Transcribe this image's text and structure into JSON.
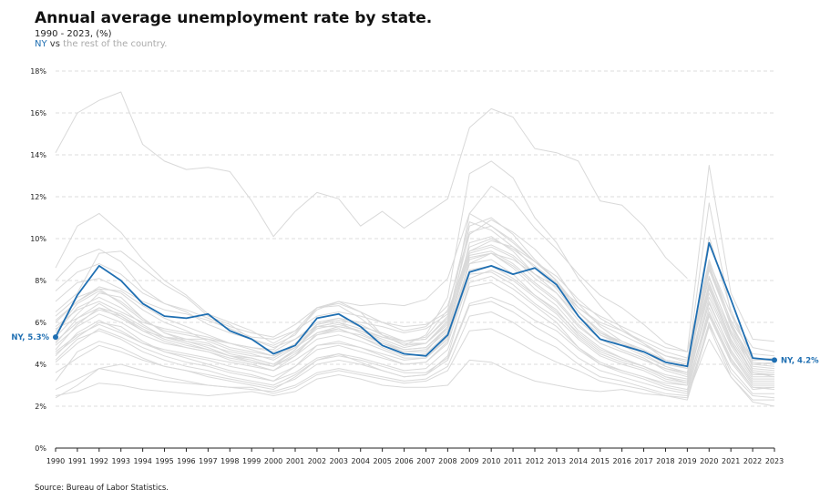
{
  "header": {
    "title": "Annual average unemployment rate by state.",
    "subtitle": "1990 - 2023, (%)",
    "legend_ny": "NY",
    "legend_vs": " vs ",
    "legend_rest": "the rest of the country."
  },
  "footer": {
    "source": "Source: Bureau of Labor Statistics."
  },
  "colors": {
    "ny": "#1f6fb2",
    "rest": "#d9d9d9",
    "grid": "#dddddd"
  },
  "chart_data": {
    "type": "line",
    "title": "Annual average unemployment rate by state.",
    "subtitle": "1990 - 2023, (%)",
    "xlabel": "",
    "ylabel": "",
    "ylim": [
      0,
      18
    ],
    "yticks": [
      0,
      2,
      4,
      6,
      8,
      10,
      12,
      14,
      16,
      18
    ],
    "ytick_labels": [
      "0%",
      "2%",
      "4%",
      "6%",
      "8%",
      "10%",
      "12%",
      "14%",
      "16%",
      "18%"
    ],
    "grid": true,
    "x": [
      1990,
      1991,
      1992,
      1993,
      1994,
      1995,
      1996,
      1997,
      1998,
      1999,
      2000,
      2001,
      2002,
      2003,
      2004,
      2005,
      2006,
      2007,
      2008,
      2009,
      2010,
      2011,
      2012,
      2013,
      2014,
      2015,
      2016,
      2017,
      2018,
      2019,
      2020,
      2021,
      2022,
      2023
    ],
    "x_labels": [
      "1990",
      "1991",
      "1992",
      "1993",
      "1994",
      "1995",
      "1996",
      "1997",
      "1998",
      "1999",
      "2000",
      "2001",
      "2002",
      "2003",
      "2004",
      "2005",
      "2006",
      "2007",
      "2008",
      "2009",
      "2010",
      "2011",
      "2012",
      "2013",
      "2014",
      "2015",
      "2016",
      "2017",
      "2018",
      "2019",
      "2020",
      "2021",
      "2022",
      "2023"
    ],
    "highlight": {
      "name": "NY",
      "values": [
        5.3,
        7.3,
        8.7,
        8.0,
        6.9,
        6.3,
        6.2,
        6.4,
        5.6,
        5.2,
        4.5,
        4.9,
        6.2,
        6.4,
        5.8,
        4.9,
        4.5,
        4.4,
        5.4,
        8.4,
        8.7,
        8.3,
        8.6,
        7.8,
        6.3,
        5.2,
        4.9,
        4.6,
        4.1,
        3.9,
        9.8,
        7.1,
        4.3,
        4.2
      ],
      "start_label": "NY, 5.3%",
      "end_label": "NY, 4.2%"
    },
    "series": [
      {
        "name": "state-01",
        "values": [
          14.1,
          16.0,
          16.6,
          17.0,
          14.5,
          13.7,
          13.3,
          13.4,
          13.2,
          11.8,
          10.1,
          11.3,
          12.2,
          11.9,
          10.6,
          11.3,
          10.5,
          11.2,
          11.9,
          15.3,
          16.2,
          15.8,
          14.3,
          14.1,
          13.7,
          11.8,
          11.6,
          10.6,
          9.1,
          8.1,
          null,
          null,
          null,
          null
        ]
      },
      {
        "name": "state-02",
        "values": [
          8.6,
          10.6,
          11.2,
          10.3,
          9.0,
          8.0,
          7.3,
          6.4,
          6.0,
          5.6,
          5.0,
          5.6,
          6.7,
          7.0,
          6.5,
          5.4,
          4.9,
          5.0,
          5.9,
          11.2,
          12.5,
          11.8,
          10.5,
          9.5,
          8.3,
          7.3,
          6.7,
          5.9,
          5.0,
          4.6,
          13.5,
          7.4,
          5.2,
          5.1
        ]
      },
      {
        "name": "state-03",
        "values": [
          6.5,
          7.4,
          9.3,
          9.4,
          8.6,
          7.8,
          7.2,
          6.3,
          5.9,
          5.2,
          4.9,
          5.4,
          6.7,
          6.8,
          6.2,
          5.4,
          4.9,
          5.4,
          7.2,
          13.1,
          13.7,
          12.9,
          11.0,
          9.8,
          8.1,
          6.8,
          5.7,
          5.0,
          4.2,
          4.0,
          11.7,
          6.4,
          4.2,
          4.3
        ]
      },
      {
        "name": "state-04",
        "values": [
          5.6,
          6.9,
          7.5,
          7.0,
          6.2,
          5.5,
          5.2,
          5.0,
          4.5,
          4.3,
          4.0,
          4.7,
          5.8,
          6.0,
          5.5,
          5.0,
          4.6,
          4.6,
          5.8,
          10.6,
          11.0,
          10.2,
          9.0,
          8.0,
          6.5,
          5.6,
          5.0,
          4.5,
          3.9,
          3.6,
          8.5,
          5.9,
          3.9,
          3.8
        ]
      },
      {
        "name": "state-05",
        "values": [
          5.0,
          6.2,
          6.9,
          6.3,
          5.6,
          5.1,
          4.8,
          4.6,
          4.2,
          4.0,
          3.7,
          4.4,
          5.5,
          5.7,
          5.3,
          4.8,
          4.4,
          4.5,
          5.5,
          9.8,
          10.1,
          9.4,
          8.3,
          7.4,
          6.1,
          5.2,
          4.7,
          4.3,
          3.7,
          3.4,
          7.9,
          5.4,
          3.6,
          3.5
        ]
      },
      {
        "name": "state-06",
        "values": [
          4.4,
          5.5,
          6.1,
          5.6,
          5.0,
          4.6,
          4.3,
          4.0,
          3.7,
          3.5,
          3.2,
          3.9,
          4.9,
          5.1,
          4.8,
          4.4,
          4.0,
          4.1,
          5.1,
          9.0,
          9.3,
          8.6,
          7.6,
          6.8,
          5.6,
          4.8,
          4.3,
          3.9,
          3.4,
          3.1,
          7.2,
          4.9,
          3.3,
          3.3
        ]
      },
      {
        "name": "state-07",
        "values": [
          3.2,
          4.6,
          5.1,
          4.8,
          4.3,
          3.9,
          3.7,
          3.4,
          3.2,
          3.0,
          2.8,
          3.4,
          4.2,
          4.5,
          4.1,
          3.7,
          3.4,
          3.5,
          4.4,
          7.9,
          8.2,
          7.6,
          6.8,
          6.0,
          4.8,
          4.0,
          3.6,
          3.3,
          2.9,
          2.7,
          6.3,
          4.1,
          2.8,
          2.9
        ]
      },
      {
        "name": "state-08",
        "values": [
          2.5,
          2.7,
          3.1,
          3.0,
          2.8,
          2.7,
          2.6,
          2.5,
          2.6,
          2.7,
          2.5,
          2.7,
          3.3,
          3.5,
          3.3,
          3.0,
          2.9,
          2.9,
          3.0,
          4.2,
          4.1,
          3.6,
          3.2,
          3.0,
          2.8,
          2.7,
          2.8,
          2.6,
          2.5,
          2.3,
          5.8,
          3.4,
          2.2,
          2.0
        ]
      },
      {
        "name": "state-09",
        "values": [
          2.4,
          3.0,
          3.8,
          4.0,
          3.7,
          3.4,
          3.2,
          3.0,
          2.9,
          2.9,
          2.6,
          2.9,
          3.5,
          3.7,
          3.5,
          3.3,
          3.1,
          3.2,
          3.7,
          5.6,
          5.7,
          5.2,
          4.6,
          4.1,
          3.7,
          3.2,
          3.0,
          2.8,
          2.5,
          2.4,
          6.0,
          3.6,
          2.5,
          2.4
        ]
      },
      {
        "name": "state-10",
        "values": [
          6.0,
          7.0,
          7.7,
          7.4,
          6.6,
          6.0,
          5.6,
          5.1,
          4.7,
          4.5,
          4.2,
          4.8,
          5.7,
          5.9,
          5.6,
          5.2,
          4.8,
          5.0,
          6.1,
          10.2,
          10.9,
          10.3,
          9.5,
          8.4,
          6.9,
          5.8,
          5.1,
          4.6,
          4.0,
          3.8,
          10.1,
          6.6,
          4.1,
          4.0
        ]
      },
      {
        "name": "state-11",
        "values": [
          5.3,
          6.4,
          7.4,
          7.2,
          6.2,
          5.5,
          5.1,
          4.8,
          4.4,
          4.1,
          3.9,
          4.7,
          5.9,
          6.2,
          5.8,
          5.5,
          5.1,
          5.3,
          6.6,
          10.8,
          10.4,
          9.6,
          8.6,
          7.6,
          6.3,
          5.4,
          4.9,
          4.4,
          3.9,
          3.6,
          8.8,
          5.8,
          3.7,
          3.6
        ]
      },
      {
        "name": "state-12",
        "values": [
          4.7,
          5.9,
          6.7,
          6.4,
          5.8,
          5.3,
          5.0,
          4.7,
          4.4,
          4.2,
          3.9,
          4.4,
          5.2,
          5.4,
          5.1,
          4.7,
          4.3,
          4.3,
          5.3,
          8.8,
          9.0,
          8.3,
          7.3,
          6.5,
          5.5,
          4.7,
          4.3,
          3.9,
          3.4,
          3.2,
          7.6,
          5.1,
          3.4,
          3.4
        ]
      },
      {
        "name": "state-13",
        "values": [
          4.1,
          5.0,
          5.7,
          5.3,
          4.8,
          4.4,
          4.1,
          3.9,
          3.6,
          3.4,
          3.2,
          3.6,
          4.3,
          4.5,
          4.3,
          4.0,
          3.7,
          3.8,
          4.7,
          7.7,
          7.9,
          7.3,
          6.5,
          5.8,
          4.8,
          4.1,
          3.7,
          3.4,
          3.0,
          2.8,
          6.7,
          4.5,
          3.0,
          3.0
        ]
      },
      {
        "name": "state-14",
        "values": [
          7.0,
          7.9,
          8.1,
          7.6,
          7.0,
          6.6,
          6.4,
          6.1,
          5.7,
          5.3,
          5.2,
          5.6,
          6.3,
          6.5,
          6.3,
          6.0,
          5.8,
          5.9,
          6.5,
          9.4,
          9.7,
          9.2,
          8.3,
          7.7,
          6.7,
          6.0,
          5.6,
          5.1,
          4.6,
          4.3,
          8.7,
          6.1,
          4.5,
          4.4
        ]
      },
      {
        "name": "state-15",
        "values": [
          6.1,
          7.0,
          7.6,
          6.9,
          6.1,
          5.6,
          5.4,
          5.2,
          4.8,
          4.6,
          4.4,
          5.0,
          5.9,
          6.1,
          5.9,
          5.4,
          5.1,
          5.2,
          6.3,
          9.6,
          10.0,
          9.5,
          8.7,
          7.9,
          6.5,
          5.5,
          5.1,
          4.7,
          4.2,
          4.0,
          8.2,
          5.5,
          3.8,
          3.7
        ]
      },
      {
        "name": "state-16",
        "values": [
          5.5,
          6.7,
          7.2,
          6.7,
          5.9,
          5.3,
          5.1,
          4.9,
          4.6,
          4.4,
          4.3,
          4.9,
          5.8,
          6.0,
          5.7,
          5.3,
          5.0,
          5.0,
          6.0,
          9.2,
          9.4,
          8.8,
          7.9,
          7.1,
          5.9,
          5.0,
          4.6,
          4.2,
          3.8,
          3.5,
          7.4,
          5.0,
          3.5,
          3.5
        ]
      },
      {
        "name": "state-17",
        "values": [
          4.9,
          5.8,
          6.4,
          6.0,
          5.4,
          5.0,
          4.8,
          4.6,
          4.3,
          4.1,
          3.9,
          4.5,
          5.4,
          5.7,
          5.3,
          4.9,
          4.6,
          4.7,
          5.6,
          8.5,
          8.7,
          8.1,
          7.3,
          6.6,
          5.4,
          4.6,
          4.2,
          3.9,
          3.5,
          3.3,
          6.9,
          4.7,
          3.2,
          3.2
        ]
      },
      {
        "name": "state-18",
        "values": [
          6.3,
          7.2,
          7.6,
          7.5,
          6.8,
          6.2,
          5.8,
          5.4,
          5.0,
          4.8,
          4.7,
          5.5,
          6.6,
          7.0,
          6.8,
          6.9,
          6.8,
          7.1,
          8.1,
          11.2,
          10.6,
          9.8,
          8.9,
          8.0,
          6.5,
          5.5,
          5.0,
          4.6,
          4.1,
          3.8,
          9.0,
          6.0,
          4.0,
          4.1
        ]
      },
      {
        "name": "state-19",
        "values": [
          4.2,
          5.2,
          5.6,
          5.2,
          4.6,
          4.2,
          3.9,
          3.7,
          3.4,
          3.2,
          3.0,
          3.5,
          4.2,
          4.4,
          4.2,
          3.9,
          3.6,
          3.6,
          4.3,
          6.9,
          7.2,
          6.8,
          6.1,
          5.6,
          4.7,
          4.0,
          3.7,
          3.4,
          3.1,
          3.0,
          6.4,
          4.2,
          2.9,
          2.8
        ]
      },
      {
        "name": "state-20",
        "values": [
          8.0,
          9.1,
          9.5,
          8.9,
          7.6,
          6.9,
          6.5,
          5.9,
          5.5,
          5.2,
          4.8,
          5.2,
          5.8,
          5.8,
          5.6,
          5.1,
          4.7,
          4.8,
          5.7,
          8.8,
          9.3,
          9.0,
          8.3,
          7.7,
          6.9,
          6.3,
          5.8,
          5.3,
          4.8,
          4.6,
          8.9,
          6.4,
          4.8,
          4.6
        ]
      },
      {
        "name": "state-21",
        "values": [
          4.5,
          5.3,
          6.0,
          5.8,
          5.1,
          4.6,
          4.4,
          4.2,
          3.9,
          3.7,
          3.4,
          3.9,
          4.7,
          4.9,
          4.6,
          4.3,
          4.0,
          4.1,
          5.0,
          8.1,
          8.5,
          8.0,
          7.2,
          6.4,
          5.3,
          4.5,
          4.1,
          3.8,
          3.3,
          3.1,
          7.0,
          4.6,
          3.1,
          3.1
        ]
      },
      {
        "name": "state-22",
        "values": [
          5.8,
          6.6,
          7.0,
          6.5,
          6.0,
          5.7,
          5.5,
          5.3,
          5.0,
          4.8,
          4.6,
          5.2,
          6.0,
          6.2,
          6.0,
          5.8,
          5.5,
          5.7,
          6.4,
          9.4,
          9.9,
          9.6,
          8.9,
          8.2,
          7.1,
          6.2,
          5.6,
          5.0,
          4.4,
          4.1,
          7.8,
          5.2,
          3.6,
          3.4
        ]
      },
      {
        "name": "state-23",
        "values": [
          3.6,
          4.3,
          4.9,
          4.6,
          4.2,
          3.9,
          3.7,
          3.5,
          3.3,
          3.1,
          2.9,
          3.3,
          4.0,
          4.2,
          4.0,
          3.7,
          3.4,
          3.5,
          4.2,
          6.8,
          7.0,
          6.5,
          5.8,
          5.2,
          4.3,
          3.7,
          3.4,
          3.1,
          2.8,
          2.6,
          5.9,
          3.8,
          2.6,
          2.6
        ]
      },
      {
        "name": "state-24",
        "values": [
          5.1,
          6.0,
          6.6,
          6.3,
          5.7,
          5.2,
          4.9,
          4.7,
          4.4,
          4.3,
          4.0,
          4.6,
          5.4,
          5.6,
          5.4,
          5.0,
          4.7,
          4.8,
          5.8,
          9.1,
          9.3,
          8.7,
          7.8,
          7.0,
          5.8,
          5.0,
          4.6,
          4.2,
          3.8,
          3.6,
          7.7,
          5.2,
          3.6,
          3.5
        ]
      },
      {
        "name": "state-25",
        "values": [
          4.6,
          5.4,
          5.9,
          5.5,
          5.0,
          4.7,
          4.5,
          4.3,
          4.1,
          3.9,
          3.7,
          4.2,
          4.9,
          5.0,
          4.8,
          4.5,
          4.2,
          4.3,
          5.2,
          8.3,
          8.4,
          7.8,
          6.9,
          6.2,
          5.2,
          4.4,
          4.0,
          3.7,
          3.2,
          3.0,
          6.5,
          4.3,
          2.9,
          2.9
        ]
      },
      {
        "name": "state-26",
        "values": [
          7.5,
          8.4,
          8.8,
          8.3,
          7.4,
          6.9,
          6.6,
          6.2,
          5.8,
          5.5,
          5.3,
          5.9,
          6.7,
          6.9,
          6.5,
          6.0,
          5.6,
          5.8,
          6.8,
          10.3,
          10.6,
          9.9,
          8.9,
          8.0,
          6.7,
          5.9,
          5.4,
          4.9,
          4.4,
          4.2,
          8.6,
          5.9,
          4.2,
          4.2
        ]
      },
      {
        "name": "state-27",
        "values": [
          2.8,
          3.3,
          3.8,
          3.6,
          3.4,
          3.2,
          3.1,
          3.0,
          2.9,
          2.8,
          2.7,
          3.0,
          3.6,
          3.8,
          3.6,
          3.4,
          3.2,
          3.3,
          3.9,
          6.3,
          6.5,
          6.0,
          5.3,
          4.8,
          4.0,
          3.4,
          3.2,
          2.9,
          2.6,
          2.5,
          5.2,
          3.4,
          2.3,
          2.3
        ]
      },
      {
        "name": "state-28",
        "values": [
          5.7,
          6.2,
          6.7,
          6.2,
          5.6,
          5.3,
          5.2,
          5.2,
          5.0,
          4.7,
          4.4,
          4.8,
          5.5,
          5.8,
          5.6,
          5.3,
          5.1,
          5.2,
          6.2,
          9.3,
          9.6,
          9.1,
          8.1,
          7.4,
          6.3,
          5.4,
          5.0,
          4.6,
          4.2,
          4.0,
          8.1,
          5.6,
          4.0,
          3.9
        ]
      }
    ]
  }
}
